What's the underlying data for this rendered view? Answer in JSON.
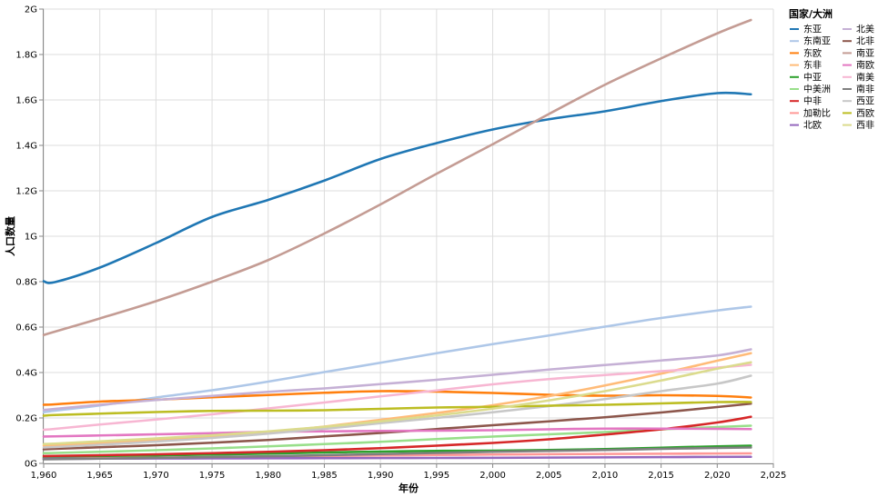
{
  "chart_data": {
    "type": "line",
    "xlabel": "年份",
    "ylabel": "人口数量",
    "xlim": [
      1960,
      2025
    ],
    "ylim": [
      0,
      2000000000
    ],
    "x_ticks": [
      1960,
      1965,
      1970,
      1975,
      1980,
      1985,
      1990,
      1995,
      2000,
      2005,
      2010,
      2015,
      2020,
      2025
    ],
    "x_tick_labels": [
      "1,960",
      "1,965",
      "1,970",
      "1,975",
      "1,980",
      "1,985",
      "1,990",
      "1,995",
      "2,000",
      "2,005",
      "2,010",
      "2,015",
      "2,020",
      "2,025"
    ],
    "y_ticks": [
      0,
      200000000,
      400000000,
      600000000,
      800000000,
      1000000000,
      1200000000,
      1400000000,
      1600000000,
      1800000000,
      2000000000
    ],
    "y_tick_labels": [
      "0G",
      "0.2G",
      "0.4G",
      "0.6G",
      "0.8G",
      "1G",
      "1.2G",
      "1.4G",
      "1.6G",
      "1.8G",
      "2G"
    ],
    "grid": true,
    "legend": {
      "title": "国家/大洲",
      "placement": "right"
    },
    "x": [
      1960,
      1961,
      1965,
      1970,
      1975,
      1980,
      1985,
      1990,
      1995,
      2000,
      2005,
      2010,
      2015,
      2020,
      2023
    ],
    "series": [
      {
        "name": "东亚",
        "color": "#1f77b4",
        "values": [
          802000000,
          798000000,
          862000000,
          970000000,
          1085000000,
          1160000000,
          1245000000,
          1340000000,
          1410000000,
          1470000000,
          1515000000,
          1550000000,
          1595000000,
          1630000000,
          1625000000
        ]
      },
      {
        "name": "东南亚",
        "color": "#aec7e8",
        "values": [
          225000000,
          232000000,
          255000000,
          290000000,
          322000000,
          360000000,
          402000000,
          443000000,
          485000000,
          525000000,
          563000000,
          602000000,
          640000000,
          673000000,
          690000000
        ]
      },
      {
        "name": "东欧",
        "color": "#ff7f0e",
        "values": [
          258000000,
          260000000,
          272000000,
          280000000,
          291000000,
          301000000,
          311000000,
          318000000,
          316000000,
          310000000,
          302000000,
          298000000,
          300000000,
          297000000,
          290000000
        ]
      },
      {
        "name": "东非",
        "color": "#ffbb78",
        "values": [
          78000000,
          80000000,
          90000000,
          103000000,
          119000000,
          138000000,
          162000000,
          192000000,
          222000000,
          256000000,
          296000000,
          343000000,
          395000000,
          452000000,
          485000000
        ]
      },
      {
        "name": "中亚",
        "color": "#2ca02c",
        "values": [
          25000000,
          26000000,
          30000000,
          35000000,
          39000000,
          43000000,
          48000000,
          52000000,
          55000000,
          56000000,
          59000000,
          63000000,
          69000000,
          75000000,
          78000000
        ]
      },
      {
        "name": "中美洲",
        "color": "#98df8a",
        "values": [
          45000000,
          46000000,
          51000000,
          58000000,
          66000000,
          75000000,
          85000000,
          95000000,
          107000000,
          118000000,
          128000000,
          138000000,
          150000000,
          160000000,
          166000000
        ]
      },
      {
        "name": "中非",
        "color": "#d62728",
        "values": [
          32000000,
          33000000,
          36000000,
          40000000,
          45000000,
          51000000,
          58000000,
          67000000,
          78000000,
          90000000,
          106000000,
          127000000,
          150000000,
          180000000,
          205000000
        ]
      },
      {
        "name": "加勒比",
        "color": "#ff9896",
        "values": [
          20000000,
          20500000,
          22500000,
          25000000,
          27500000,
          30000000,
          32500000,
          35000000,
          37000000,
          39000000,
          40500000,
          41500000,
          42500000,
          43500000,
          44000000
        ]
      },
      {
        "name": "北欧",
        "color": "#9467bd",
        "values": [
          20000000,
          20200000,
          21000000,
          21500000,
          22000000,
          22500000,
          23000000,
          23500000,
          24000000,
          24500000,
          25500000,
          26500000,
          27500000,
          28500000,
          29000000
        ]
      },
      {
        "name": "北美",
        "color": "#c5b0d5",
        "values": [
          235000000,
          240000000,
          258000000,
          279000000,
          297000000,
          315000000,
          330000000,
          349000000,
          368000000,
          390000000,
          413000000,
          433000000,
          453000000,
          475000000,
          502000000
        ]
      },
      {
        "name": "北非",
        "color": "#8c564b",
        "values": [
          62000000,
          64000000,
          71000000,
          80000000,
          91000000,
          103000000,
          119000000,
          134000000,
          151000000,
          168000000,
          185000000,
          203000000,
          224000000,
          248000000,
          263000000
        ]
      },
      {
        "name": "南亚",
        "color": "#c49c94",
        "values": [
          565000000,
          580000000,
          638000000,
          714000000,
          800000000,
          895000000,
          1012000000,
          1140000000,
          1275000000,
          1405000000,
          1538000000,
          1667000000,
          1783000000,
          1893000000,
          1952000000
        ]
      },
      {
        "name": "南欧",
        "color": "#e377c2",
        "values": [
          118000000,
          119000000,
          123000000,
          128000000,
          133000000,
          139000000,
          141000000,
          143000000,
          144000000,
          146000000,
          150000000,
          153000000,
          153000000,
          152000000,
          151000000
        ]
      },
      {
        "name": "南美",
        "color": "#f7b6d2",
        "values": [
          148000000,
          152000000,
          171000000,
          193000000,
          216000000,
          242000000,
          268000000,
          295000000,
          321000000,
          348000000,
          371000000,
          389000000,
          406000000,
          422000000,
          434000000
        ]
      },
      {
        "name": "南非",
        "color": "#7f7f7f",
        "values": [
          18000000,
          18500000,
          21000000,
          24500000,
          28000000,
          31500000,
          36000000,
          41000000,
          46000000,
          51000000,
          55000000,
          59000000,
          64000000,
          68000000,
          70000000
        ]
      },
      {
        "name": "西亚",
        "color": "#c7c7c7",
        "values": [
          70000000,
          72000000,
          82000000,
          96000000,
          112000000,
          131000000,
          152000000,
          177000000,
          200000000,
          225000000,
          252000000,
          283000000,
          318000000,
          351000000,
          386000000
        ]
      },
      {
        "name": "西欧",
        "color": "#bcbd22",
        "values": [
          210000000,
          213000000,
          219000000,
          226000000,
          231000000,
          232000000,
          234000000,
          240000000,
          246000000,
          249000000,
          254000000,
          258000000,
          264000000,
          270000000,
          270000000
        ]
      },
      {
        "name": "西非",
        "color": "#dbdb8d",
        "values": [
          85000000,
          87000000,
          97000000,
          110000000,
          124000000,
          141000000,
          161000000,
          185000000,
          211000000,
          241000000,
          277000000,
          318000000,
          365000000,
          417000000,
          445000000
        ]
      }
    ]
  }
}
